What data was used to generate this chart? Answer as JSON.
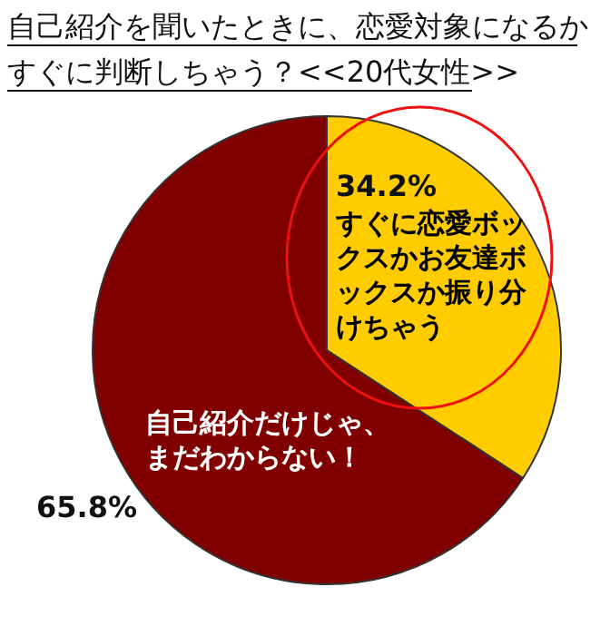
{
  "chart_data": {
    "type": "pie",
    "title": "自己紹介を聞いたときに、恋愛対象になるかすぐに判断しちゃう？<<20代女性>>",
    "categories": [
      "すぐに恋愛ボックスかお友達ボックスか振り分けちゃう",
      "自己紹介だけじゃ、まだわからない！"
    ],
    "values": [
      34.2,
      65.8
    ],
    "colors": [
      "#ffcc00",
      "#800000"
    ],
    "value_labels": [
      "34.2%",
      "65.8%"
    ]
  }
}
